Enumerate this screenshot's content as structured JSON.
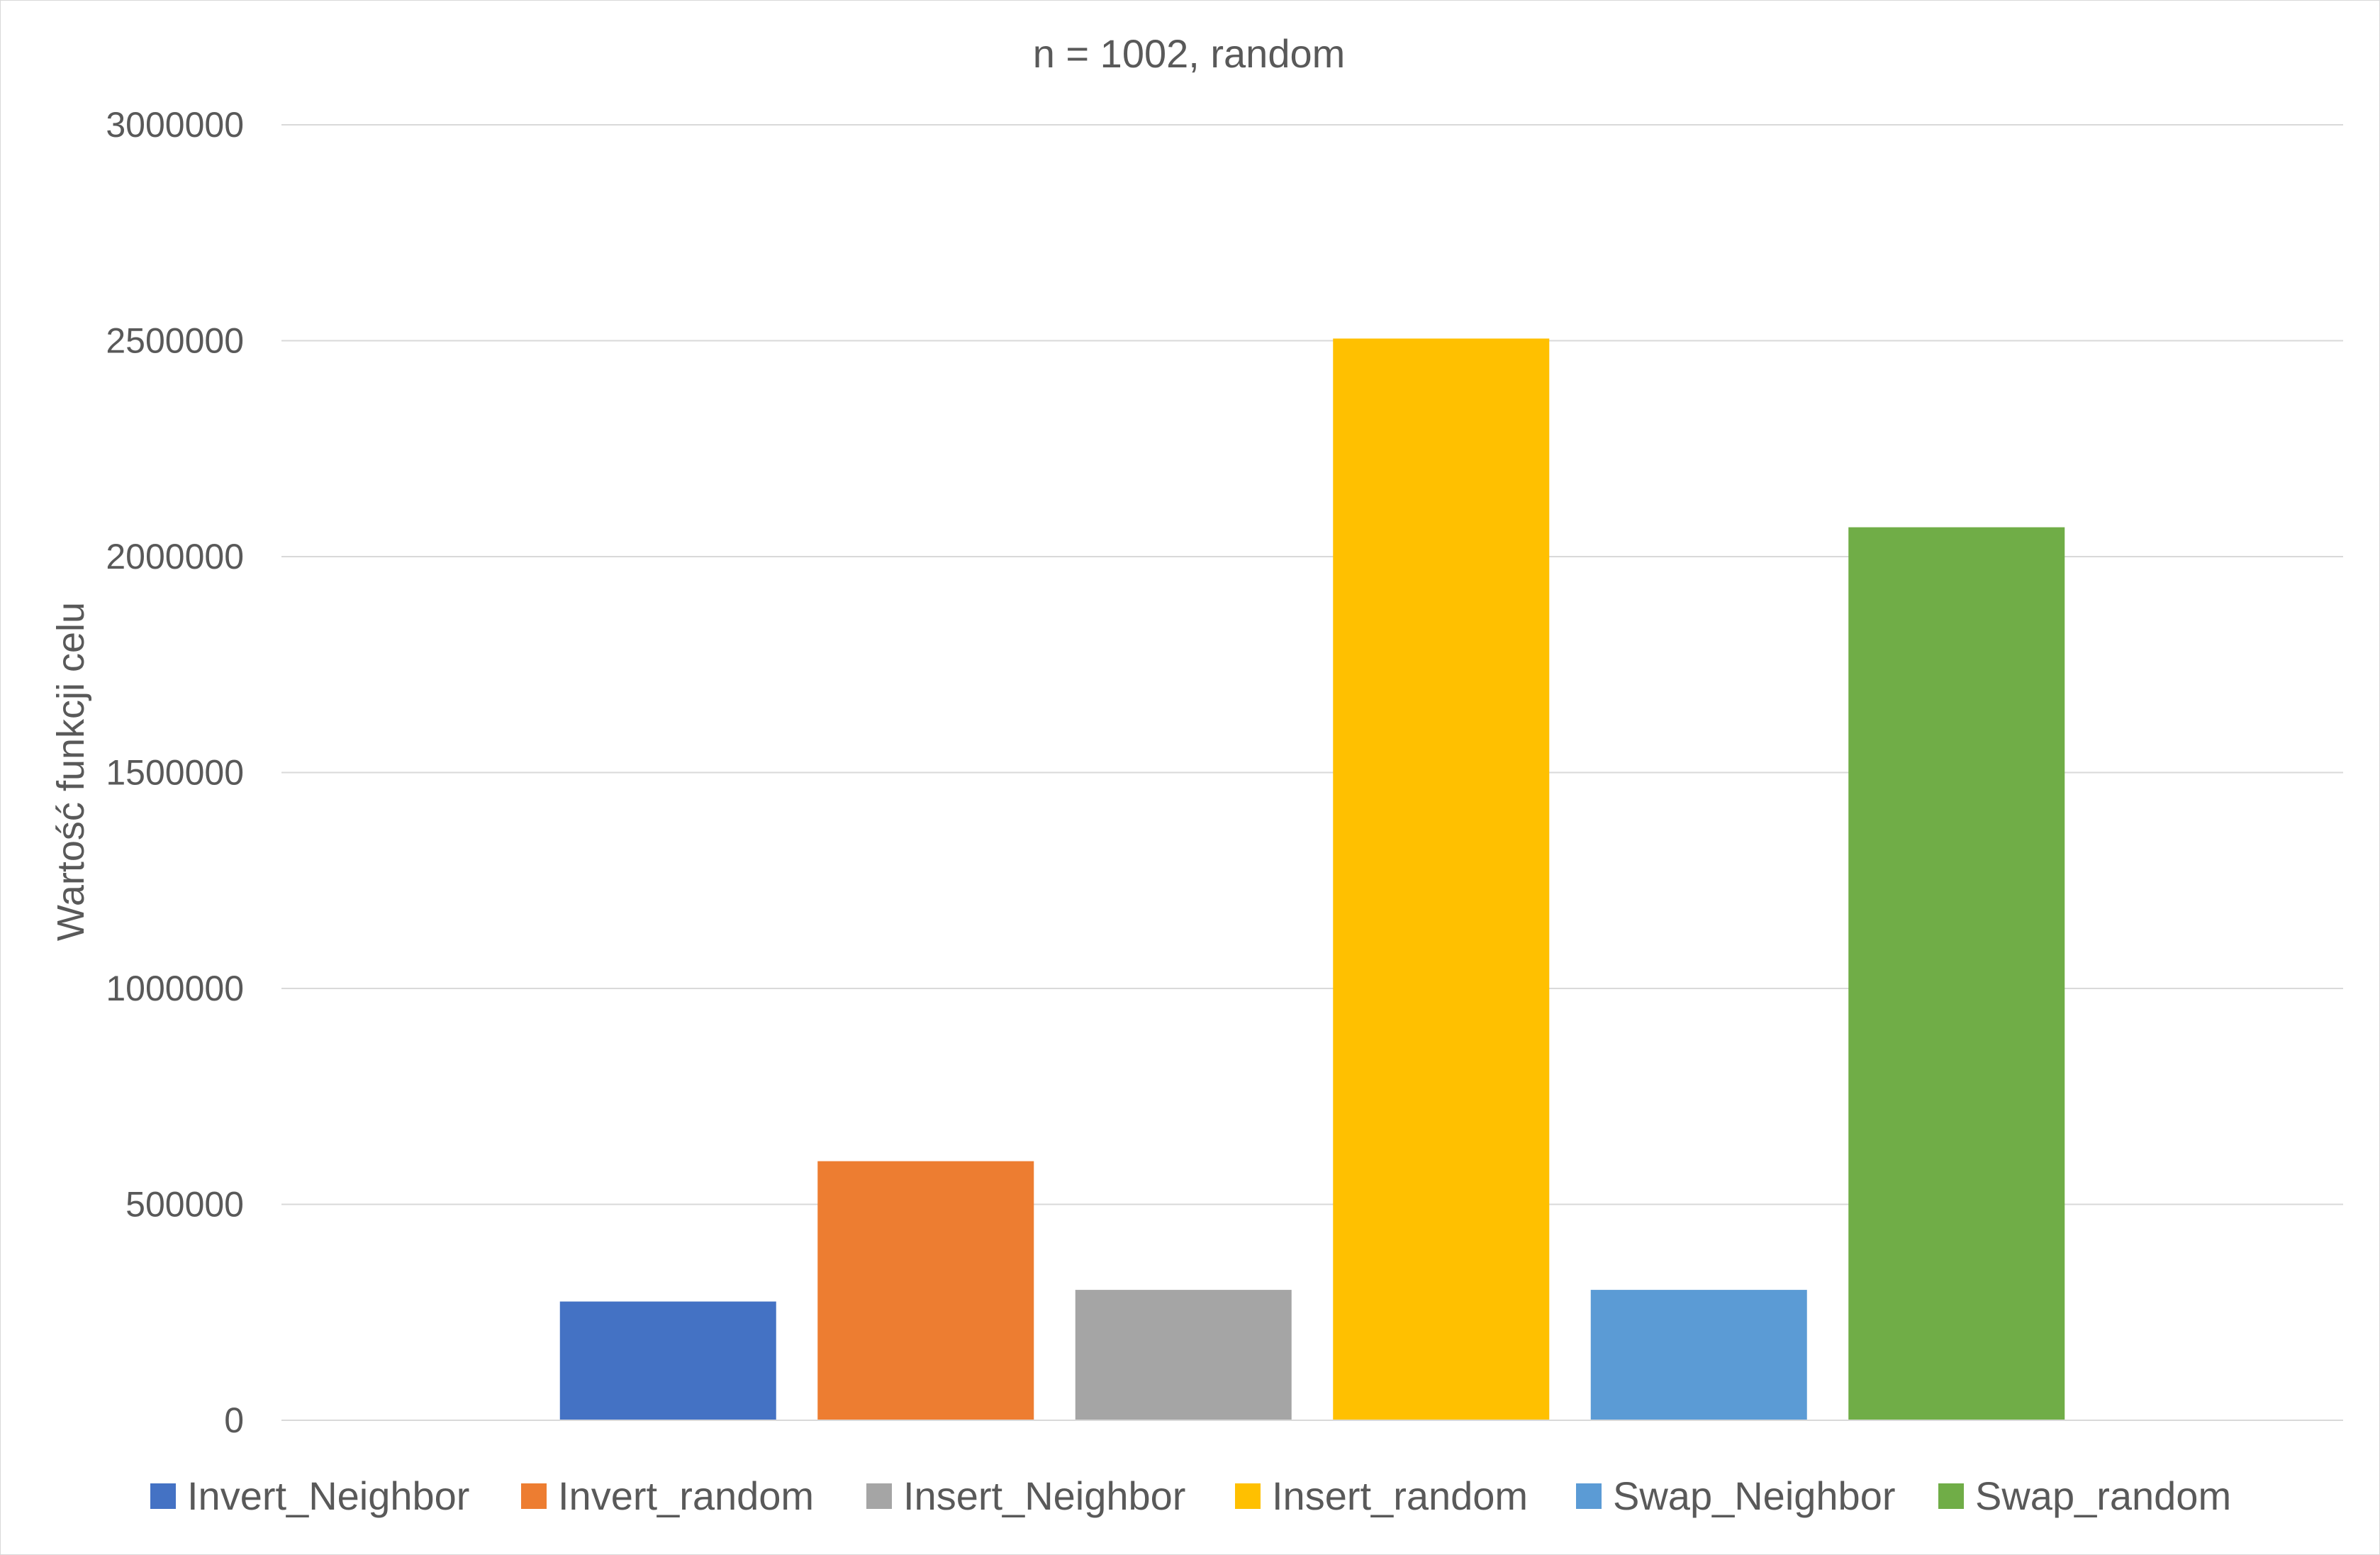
{
  "chart_data": {
    "type": "bar",
    "title": "n = 1002, random",
    "xlabel": "",
    "ylabel": "Wartość funkcji celu",
    "ylim": [
      0,
      3000000
    ],
    "yticks": [
      0,
      500000,
      1000000,
      1500000,
      2000000,
      2500000,
      3000000
    ],
    "ytick_labels": [
      "0",
      "500000",
      "1000000",
      "1500000",
      "2000000",
      "2500000",
      "3000000"
    ],
    "grid": true,
    "legend_position": "bottom",
    "series": [
      {
        "name": "Invert_Neighbor",
        "value": 275000,
        "color": "#4472C4"
      },
      {
        "name": "Invert_random",
        "value": 600000,
        "color": "#ED7D31"
      },
      {
        "name": "Insert_Neighbor",
        "value": 302000,
        "color": "#A5A5A5"
      },
      {
        "name": "Insert_random",
        "value": 2505000,
        "color": "#FFC000"
      },
      {
        "name": "Swap_Neighbor",
        "value": 302000,
        "color": "#5B9BD5"
      },
      {
        "name": "Swap_random",
        "value": 2068000,
        "color": "#70AD47"
      }
    ]
  }
}
